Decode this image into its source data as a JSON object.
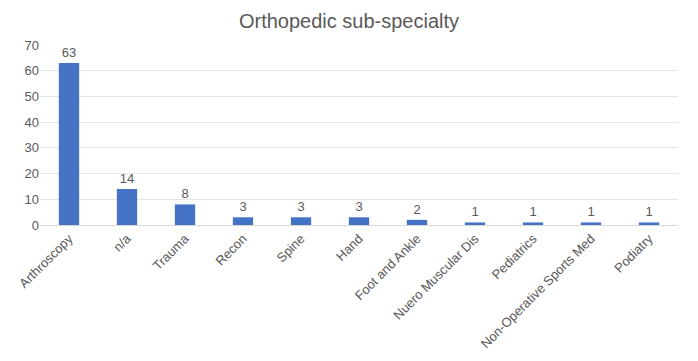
{
  "chart_data": {
    "type": "bar",
    "title": "Orthopedic sub-specialty",
    "categories": [
      "Arthroscopy",
      "n/a",
      "Trauma",
      "Recon",
      "Spine",
      "Hand",
      "Foot and Ankle",
      "Nuero Muscular Dis",
      "Pediatrics",
      "Non-Operative Sports Med",
      "Podiatry"
    ],
    "values": [
      63,
      14,
      8,
      3,
      3,
      3,
      2,
      1,
      1,
      1,
      1
    ],
    "color": "#4472c4",
    "ylim": [
      0,
      70
    ],
    "yticks": [
      0,
      10,
      20,
      30,
      40,
      50,
      60,
      70
    ],
    "grid": true,
    "data_labels": true
  }
}
